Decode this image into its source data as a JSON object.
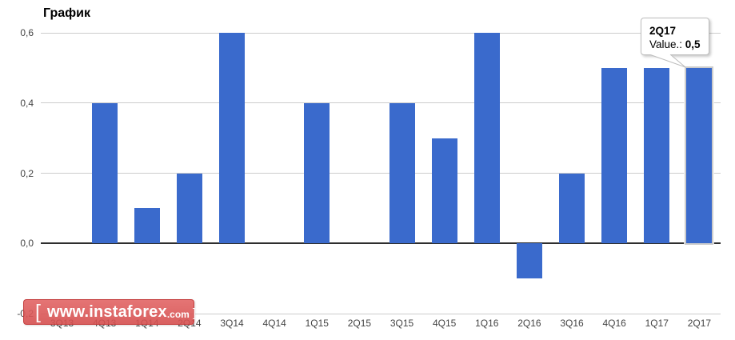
{
  "title": "График",
  "chart_data": {
    "type": "bar",
    "title": "График",
    "categories": [
      "3Q13",
      "4Q13",
      "1Q14",
      "2Q14",
      "3Q14",
      "4Q14",
      "1Q15",
      "2Q15",
      "3Q15",
      "4Q15",
      "1Q16",
      "2Q16",
      "3Q16",
      "4Q16",
      "1Q17",
      "2Q17"
    ],
    "values": [
      0,
      0.4,
      0.1,
      0.2,
      0.6,
      0,
      0.4,
      0,
      0.4,
      0.3,
      0.6,
      -0.1,
      0.2,
      0.5,
      0.5,
      0.5
    ],
    "xlabel": "",
    "ylabel": "",
    "ylim": [
      -0.2,
      0.6
    ],
    "yticks": [
      {
        "value": 0.6,
        "label": "0,6"
      },
      {
        "value": 0.4,
        "label": "0,4"
      },
      {
        "value": 0.2,
        "label": "0,2"
      },
      {
        "value": 0.0,
        "label": "0,0"
      },
      {
        "value": -0.2,
        "label": "-0,2"
      }
    ],
    "grid": true,
    "legend": "none",
    "highlighted_category": "2Q17"
  },
  "tooltip": {
    "title": "2Q17",
    "value_prefix": "Value.: ",
    "value": "0,5"
  },
  "watermark": {
    "bracket_open": "[",
    "name": "www.instaforex",
    "domain": ".com",
    "bracket_close": "]"
  },
  "colors": {
    "bar": "#3a6acc",
    "grid": "#cccccc",
    "baseline": "#2e2e2e",
    "axis_text": "#444444",
    "highlight_ring": "#cccccc",
    "watermark_bg": "#dd5a5a",
    "tooltip_border": "#bdbdbd"
  }
}
